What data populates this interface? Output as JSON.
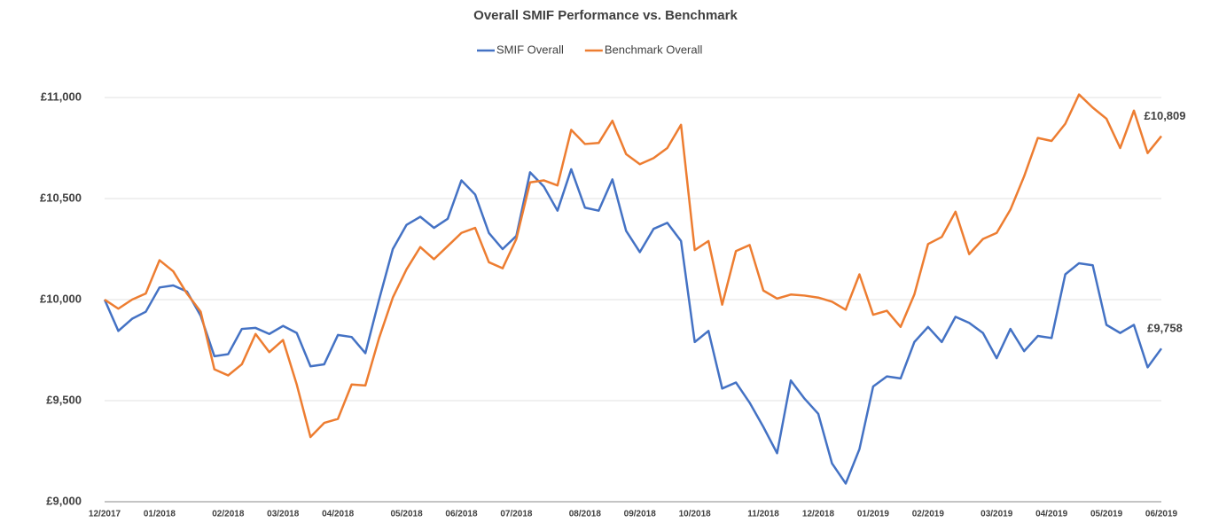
{
  "chart_data": {
    "type": "line",
    "title": "Overall SMIF Performance vs. Benchmark",
    "categories": [
      "12/2017",
      null,
      null,
      null,
      "01/2018",
      null,
      null,
      null,
      null,
      "02/2018",
      null,
      null,
      null,
      "03/2018",
      null,
      null,
      null,
      "04/2018",
      null,
      null,
      null,
      null,
      "05/2018",
      null,
      null,
      null,
      "06/2018",
      null,
      null,
      null,
      "07/2018",
      null,
      null,
      null,
      null,
      "08/2018",
      null,
      null,
      null,
      "09/2018",
      null,
      null,
      null,
      "10/2018",
      null,
      null,
      null,
      null,
      "11/2018",
      null,
      null,
      null,
      "12/2018",
      null,
      null,
      null,
      "01/2019",
      null,
      null,
      null,
      "02/2019",
      null,
      null,
      null,
      null,
      "03/2019",
      null,
      null,
      null,
      "04/2019",
      null,
      null,
      null,
      "05/2019",
      null,
      null,
      null,
      "06/2019"
    ],
    "series": [
      {
        "name": "SMIF Overall",
        "color": "#4472c4",
        "values": [
          10000,
          9845,
          9905,
          9940,
          10060,
          10070,
          10040,
          9920,
          9720,
          9730,
          9855,
          9860,
          9830,
          9870,
          9835,
          9670,
          9680,
          9825,
          9815,
          9735,
          10000,
          10250,
          10370,
          10410,
          10355,
          10400,
          10590,
          10520,
          10330,
          10250,
          10315,
          10630,
          10560,
          10440,
          10645,
          10455,
          10440,
          10595,
          10340,
          10235,
          10350,
          10380,
          10290,
          9790,
          9845,
          9560,
          9590,
          9490,
          9370,
          9240,
          9600,
          9510,
          9435,
          9190,
          9090,
          9260,
          9570,
          9620,
          9610,
          9790,
          9865,
          9790,
          9915,
          9885,
          9835,
          9710,
          9855,
          9745,
          9820,
          9810,
          10125,
          10180,
          10170,
          9875,
          9835,
          9875,
          9665,
          9758
        ],
        "value_labels": [
          null,
          null,
          null,
          null,
          null,
          null,
          null,
          null,
          null,
          null,
          null,
          null,
          null,
          null,
          null,
          null,
          null,
          null,
          null,
          null,
          null,
          null,
          null,
          null,
          null,
          null,
          null,
          null,
          null,
          null,
          null,
          null,
          null,
          null,
          null,
          null,
          null,
          null,
          null,
          null,
          null,
          null,
          null,
          null,
          null,
          null,
          null,
          null,
          null,
          null,
          null,
          null,
          null,
          null,
          null,
          null,
          null,
          null,
          null,
          null,
          null,
          null,
          null,
          null,
          null,
          null,
          null,
          null,
          null,
          null,
          null,
          null,
          null,
          null,
          null,
          null,
          null,
          "£9,758"
        ]
      },
      {
        "name": "Benchmark Overall",
        "color": "#ed7d31",
        "values": [
          10000,
          9955,
          10000,
          10030,
          10195,
          10140,
          10030,
          9940,
          9655,
          9625,
          9680,
          9830,
          9740,
          9800,
          9580,
          9320,
          9390,
          9410,
          9580,
          9575,
          9810,
          10010,
          10150,
          10260,
          10200,
          10265,
          10330,
          10355,
          10185,
          10155,
          10300,
          10580,
          10590,
          10565,
          10840,
          10770,
          10775,
          10885,
          10720,
          10670,
          10700,
          10750,
          10865,
          10245,
          10290,
          9975,
          10240,
          10270,
          10045,
          10005,
          10025,
          10020,
          10010,
          9990,
          9950,
          10125,
          9925,
          9945,
          9865,
          10025,
          10275,
          10310,
          10435,
          10225,
          10300,
          10330,
          10445,
          10610,
          10800,
          10785,
          10870,
          11015,
          10950,
          10895,
          10750,
          10935,
          10725,
          10809
        ],
        "value_labels": [
          null,
          null,
          null,
          null,
          null,
          null,
          null,
          null,
          null,
          null,
          null,
          null,
          null,
          null,
          null,
          null,
          null,
          null,
          null,
          null,
          null,
          null,
          null,
          null,
          null,
          null,
          null,
          null,
          null,
          null,
          null,
          null,
          null,
          null,
          null,
          null,
          null,
          null,
          null,
          null,
          null,
          null,
          null,
          null,
          null,
          null,
          null,
          null,
          null,
          null,
          null,
          null,
          null,
          null,
          null,
          null,
          null,
          null,
          null,
          null,
          null,
          null,
          null,
          null,
          null,
          null,
          null,
          null,
          null,
          null,
          null,
          null,
          null,
          null,
          null,
          null,
          null,
          "£10,809"
        ]
      }
    ],
    "ylim": [
      9000,
      11000
    ],
    "yticks": [
      {
        "value": 9000,
        "label": "£9,000"
      },
      {
        "value": 9500,
        "label": "£9,500"
      },
      {
        "value": 10000,
        "label": "£10,000"
      },
      {
        "value": 10500,
        "label": "£10,500"
      },
      {
        "value": 11000,
        "label": "£11,000"
      }
    ],
    "grid": true,
    "legend": "top"
  }
}
